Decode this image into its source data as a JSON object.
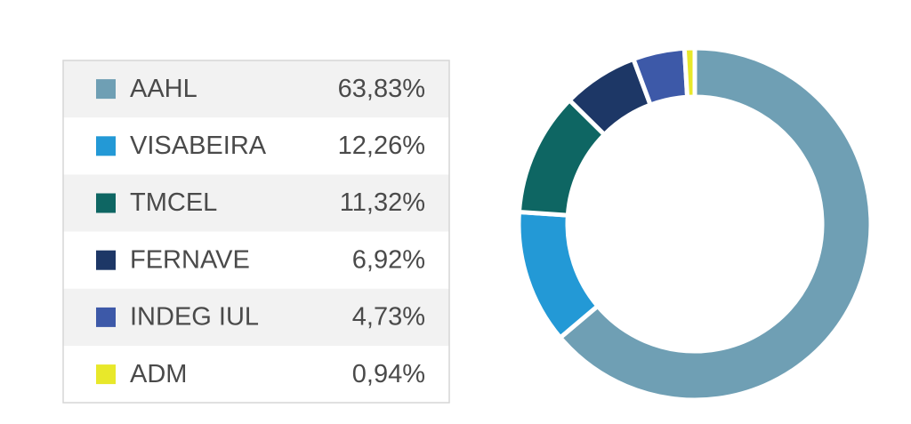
{
  "chart_data": {
    "type": "donut",
    "categories": [
      "AAHL",
      "VISABEIRA",
      "TMCEL",
      "FERNAVE",
      "INDEG IUL",
      "ADM"
    ],
    "values": [
      63.83,
      12.26,
      11.32,
      6.92,
      4.73,
      0.94
    ],
    "value_labels": [
      "63,83%",
      "12,26%",
      "11,32%",
      "6,92%",
      "4,73%",
      "0,94%"
    ],
    "colors": [
      "#6f9fb4",
      "#2399d6",
      "#0e6663",
      "#1d3766",
      "#3d59a8",
      "#e8e82a"
    ]
  }
}
